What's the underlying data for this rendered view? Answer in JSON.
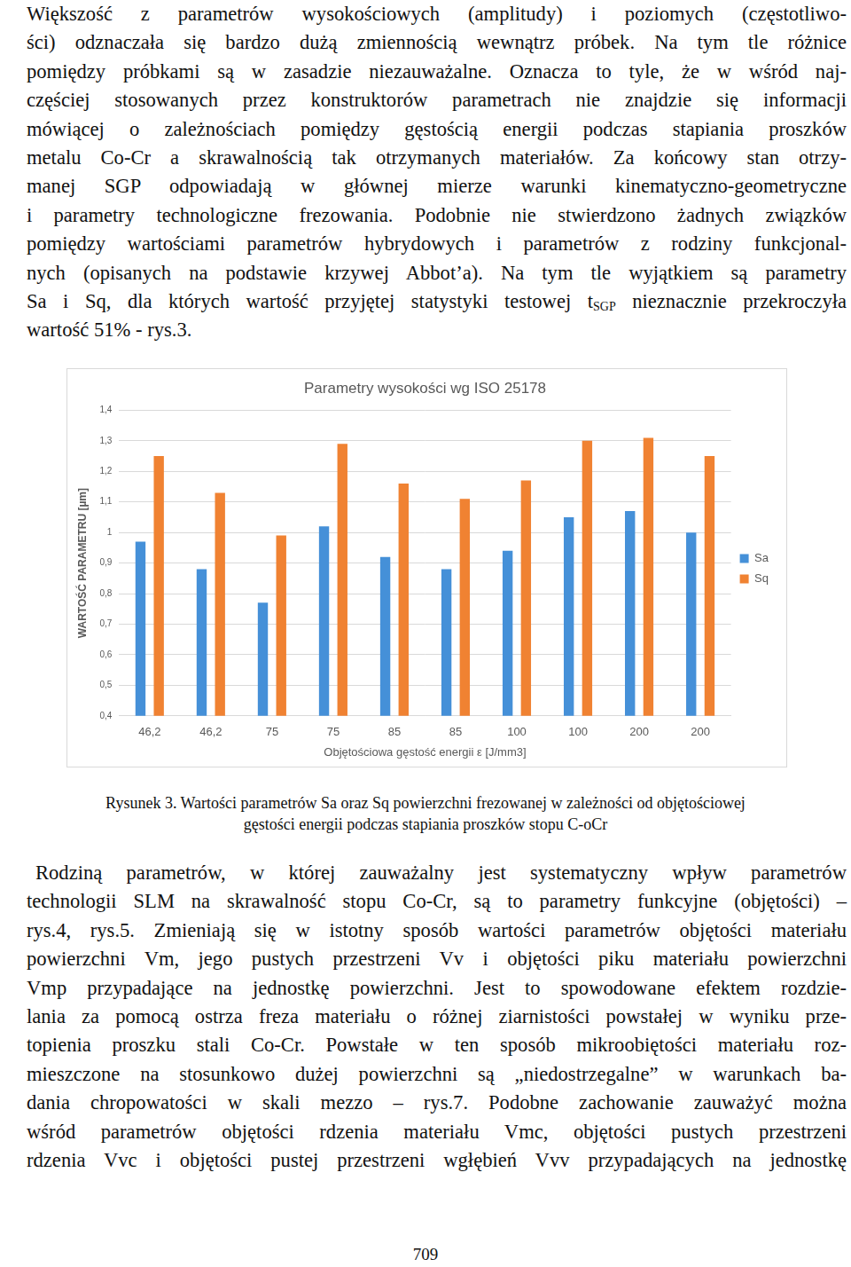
{
  "paragraphs_top": [
    "Większość z parametrów wysokościowych (amplitudy) i poziomych (częstotliwo-",
    "ści) odznaczała się bardzo dużą zmiennością wewnątrz próbek. Na tym tle różnice",
    "pomiędzy próbkami są w zasadzie niezauważalne. Oznacza to tyle, że w wśród naj-",
    "częściej stosowanych przez konstruktorów parametrach nie znajdzie się informacji",
    "mówiącej o zależnościach pomiędzy gęstością energii podczas stapiania proszków",
    "metalu Co-Cr a skrawalnością tak otrzymanych materiałów. Za końcowy stan otrzy-",
    "manej SGP odpowiadają w głównej mierze warunki kinematyczno-geometryczne",
    "i parametry technologiczne frezowania. Podobnie nie stwierdzono żadnych związków",
    "pomiędzy wartościami parametrów hybrydowych i parametrów z rodziny funkcjonal-",
    "nych (opisanych na podstawie krzywej Abbot’a). Na tym tle wyjątkiem są parametry",
    [
      "Sa i Sq, dla których wartość przyjętej statystyki testowej t",
      {
        "sub": "SGP"
      },
      " nieznacznie przekroczyła"
    ],
    "wartość 51% - rys.3."
  ],
  "chart_data": {
    "type": "bar",
    "title": "Parametry wysokości wg ISO 25178",
    "x_label": "Objętościowa gęstość energii ε [J/mm3]",
    "y_label": "WARTOŚĆ PARAMETRU [µm]",
    "categories": [
      "46,2",
      "46,2",
      "75",
      "75",
      "85",
      "85",
      "100",
      "100",
      "200",
      "200"
    ],
    "series": [
      {
        "name": "Sa",
        "color": "#4590d8",
        "values": [
          0.97,
          0.88,
          0.77,
          1.02,
          0.92,
          0.88,
          0.94,
          1.05,
          1.07,
          1.0
        ]
      },
      {
        "name": "Sq",
        "color": "#f08232",
        "values": [
          1.25,
          1.13,
          0.99,
          1.29,
          1.16,
          1.11,
          1.17,
          1.3,
          1.31,
          1.25
        ]
      }
    ],
    "ylim": [
      0.4,
      1.4
    ],
    "yticks": [
      {
        "value": 0.4,
        "label": "0,4"
      },
      {
        "value": 0.5,
        "label": "0,5"
      },
      {
        "value": 0.6,
        "label": "0,6"
      },
      {
        "value": 0.7,
        "label": "0,7"
      },
      {
        "value": 0.8,
        "label": "0,8"
      },
      {
        "value": 0.9,
        "label": "0,9"
      },
      1,
      {
        "value": 1.1,
        "label": "1,1"
      },
      {
        "value": 1.2,
        "label": "1,2"
      },
      {
        "value": 1.3,
        "label": "1,3"
      },
      {
        "value": 1.4,
        "label": "1,4"
      }
    ],
    "grid": true,
    "legend": "right"
  },
  "caption": [
    "Rysunek 3. Wartości parametrów Sa oraz Sq powierzchni frezowanej w zależności od objętościowej",
    "gęstości energii podczas stapiania proszków stopu C-oCr"
  ],
  "paragraphs_bottom": [
    "Rodziną parametrów, w której zauważalny jest systematyczny wpływ parametrów",
    "technologii SLM na skrawalność stopu Co-Cr, są to parametry funkcyjne (objętości) –",
    "rys.4, rys.5. Zmieniają się w istotny sposób wartości parametrów objętości materiału",
    "powierzchni Vm, jego pustych przestrzeni Vv i objętości piku materiału powierzchni",
    "Vmp przypadające na jednostkę powierzchni. Jest to spowodowane efektem rozdzie-",
    "lania za pomocą ostrza freza materiału o różnej ziarnistości powstałej w wyniku prze-",
    "topienia proszku stali Co-Cr. Powstałe w ten sposób mikroobiętości materiału roz-",
    "mieszczone na stosunkowo dużej powierzchni są „niedostrzegalne” w warunkach ba-",
    "dania chropowatości w skali mezzo – rys.7. Podobne zachowanie zauważyć można",
    "wśród parametrów objętości rdzenia materiału Vmc, objętości pustych przestrzeni",
    "rdzenia Vvc i objętości pustej przestrzeni wgłębień Vvv przypadających na jednostkę"
  ],
  "page_number": 709
}
